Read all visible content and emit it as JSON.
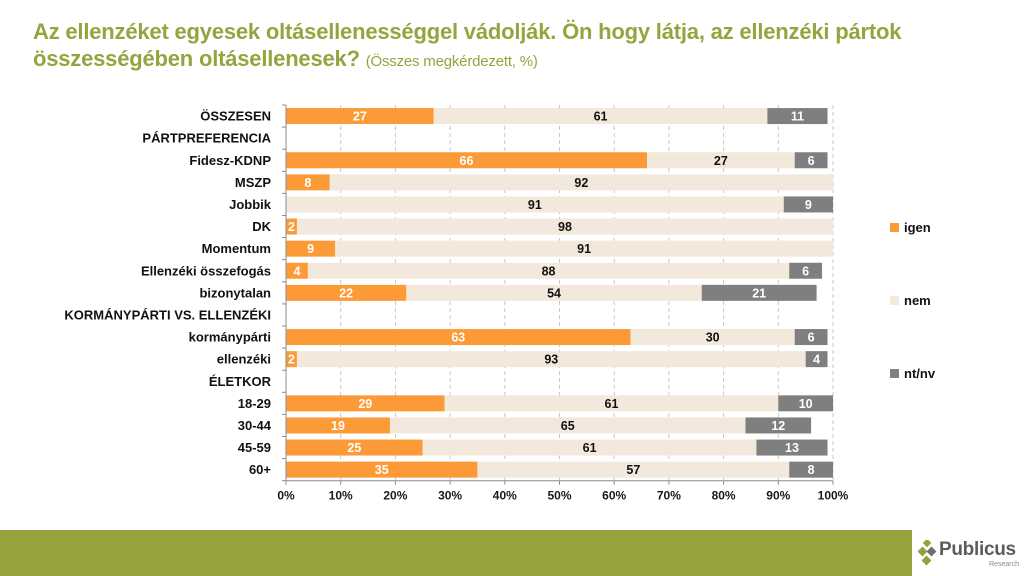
{
  "title": {
    "main": "Az ellenzéket egyesek oltásellenességgel vádolják. Ön hogy látja, az ellenzéki pártok összességében oltásellenesek?",
    "subtitle": "(Összes megkérdezett, %)"
  },
  "colors": {
    "igen": "#fd9a38",
    "nem": "#f2e8dc",
    "ntnv": "#7f7f7f",
    "title": "#97a33e",
    "footer": "#98a33e",
    "logo_green": "#8fa23c"
  },
  "chart_data": {
    "type": "bar",
    "orientation": "horizontal",
    "stacked": true,
    "percent": true,
    "title": "Az ellenzéket egyesek oltásellenességgel vádolják. Ön hogy látja, az ellenzéki pártok összességében oltásellenesek? (Összes megkérdezett, %)",
    "xlabel": "",
    "ylabel": "",
    "xlim": [
      0,
      100
    ],
    "x_ticks": [
      "0%",
      "10%",
      "20%",
      "30%",
      "40%",
      "50%",
      "60%",
      "70%",
      "80%",
      "90%",
      "100%"
    ],
    "grid": "vertical-dashed",
    "legend": {
      "placement": "right",
      "entries": [
        "igen",
        "nem",
        "nt/nv"
      ]
    },
    "categories": [
      "ÖSSZESEN",
      "PÁRTPREFERENCIA",
      "Fidesz-KDNP",
      "MSZP",
      "Jobbik",
      "DK",
      "Momentum",
      "Ellenzéki összefogás",
      "bizonytalan",
      "KORMÁNYPÁRTI VS. ELLENZÉKI",
      "kormánypárti",
      "ellenzéki",
      "ÉLETKOR",
      "18-29",
      "30-44",
      "45-59",
      "60+"
    ],
    "series": [
      {
        "name": "igen",
        "values": [
          27,
          null,
          66,
          8,
          0,
          2,
          9,
          4,
          22,
          null,
          63,
          2,
          null,
          29,
          19,
          25,
          35
        ]
      },
      {
        "name": "nem",
        "values": [
          61,
          null,
          27,
          92,
          91,
          98,
          91,
          88,
          54,
          null,
          30,
          93,
          null,
          61,
          65,
          61,
          57
        ]
      },
      {
        "name": "nt/nv",
        "values": [
          11,
          null,
          6,
          0,
          9,
          0,
          0,
          6,
          21,
          null,
          6,
          4,
          null,
          10,
          12,
          13,
          8
        ]
      }
    ]
  },
  "footer": {
    "logo_name": "Publicus",
    "logo_sub": "Research"
  }
}
